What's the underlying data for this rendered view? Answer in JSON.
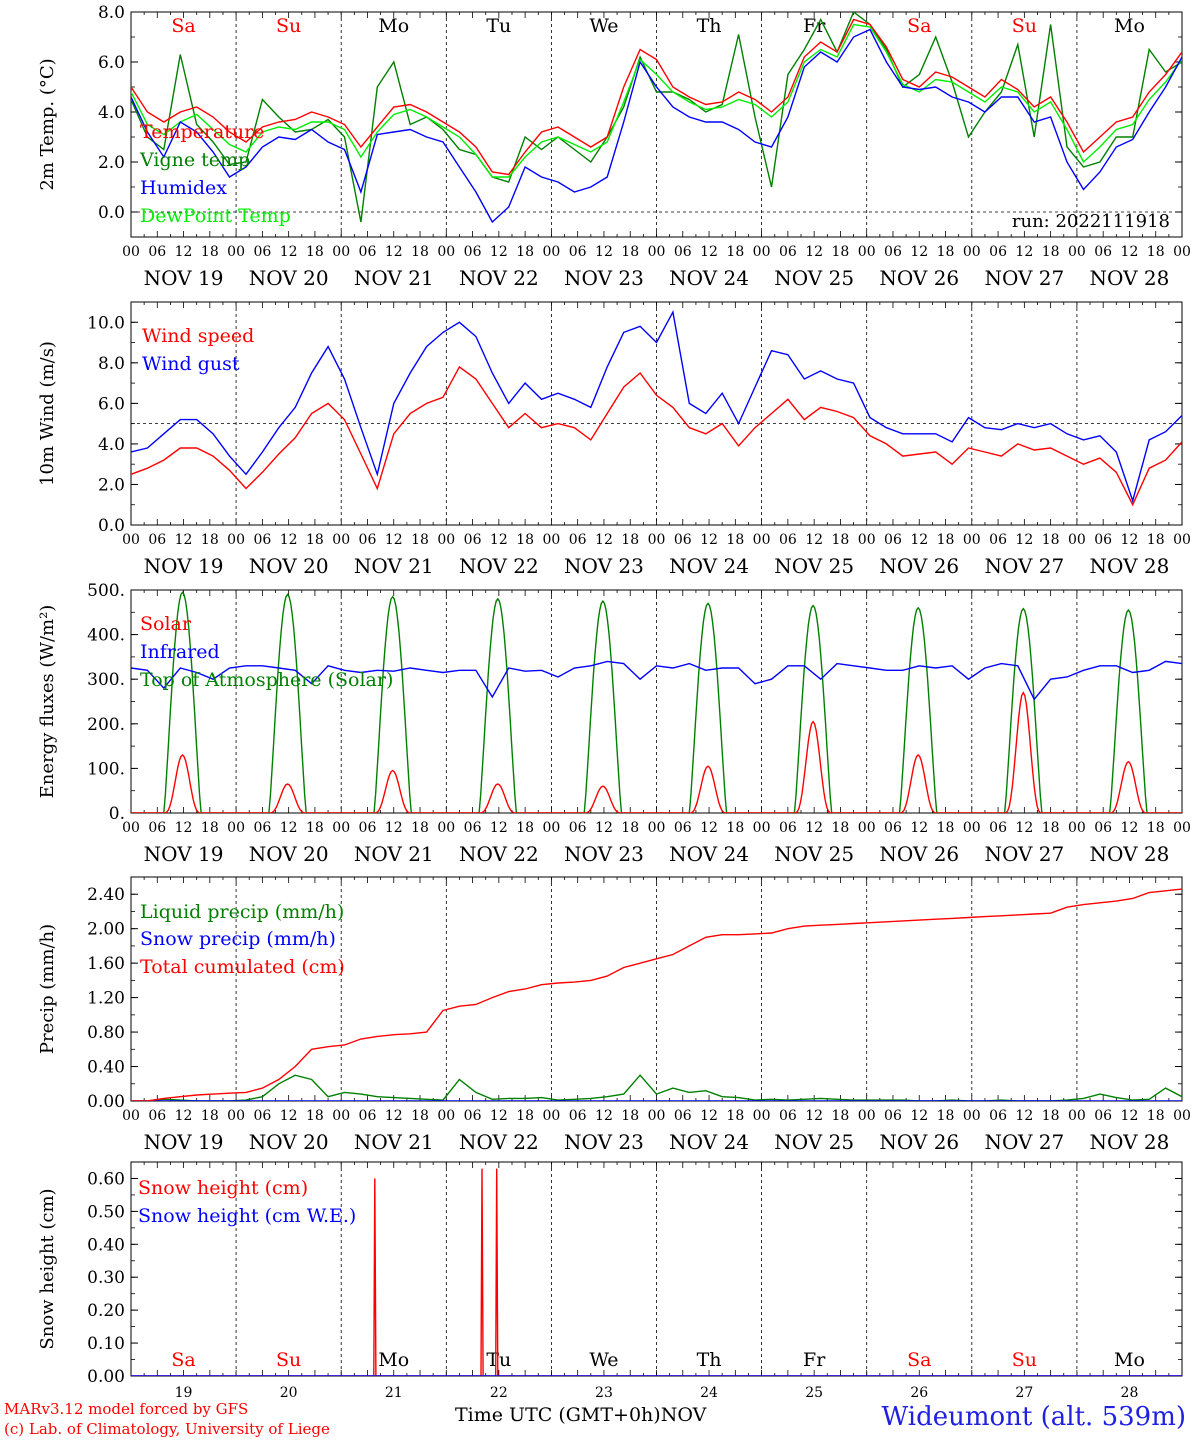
{
  "chart_data": [
    {
      "id": "temp",
      "type": "line",
      "ylabel": "2m Temp. (°C)",
      "ylim": [
        -1,
        8
      ],
      "yticks": [
        0,
        2,
        4,
        6,
        8
      ],
      "ytick_labels": [
        "0.0",
        "2.0",
        "4.0",
        "6.0",
        "8.0"
      ],
      "y_reference_line": 0,
      "top_day_labels": [
        "Sa",
        "Su",
        "Mo",
        "Tu",
        "We",
        "Th",
        "Fr",
        "Sa",
        "Su",
        "Mo"
      ],
      "annotation": "run: 2022111918",
      "x_hours_step": 6,
      "series": [
        {
          "name": "Temperature",
          "color": "#ff0000",
          "values": [
            5.0,
            4.0,
            3.6,
            4.0,
            4.2,
            3.8,
            3.2,
            2.8,
            3.4,
            3.6,
            3.7,
            4.0,
            3.8,
            3.5,
            2.6,
            3.4,
            4.2,
            4.3,
            4.0,
            3.6,
            3.2,
            2.6,
            1.6,
            1.5,
            2.4,
            3.2,
            3.4,
            3.0,
            2.6,
            3.0,
            5.0,
            6.5,
            6.1,
            5.0,
            4.6,
            4.3,
            4.4,
            4.8,
            4.5,
            4.0,
            4.6,
            6.2,
            6.8,
            6.4,
            7.7,
            7.5,
            6.6,
            5.3,
            5.0,
            5.6,
            5.4,
            5.0,
            4.6,
            5.3,
            4.9,
            4.2,
            4.6,
            3.6,
            2.4,
            3.0,
            3.6,
            3.8,
            4.8,
            5.5,
            6.4
          ]
        },
        {
          "name": "Vigne temp",
          "color": "#008000",
          "values": [
            4.5,
            3.0,
            2.5,
            6.3,
            3.5,
            2.8,
            1.9,
            2.0,
            4.5,
            3.8,
            3.2,
            3.3,
            3.7,
            3.0,
            -0.4,
            5.0,
            6.0,
            3.5,
            3.8,
            3.3,
            2.5,
            2.3,
            1.4,
            1.2,
            3.0,
            2.5,
            3.0,
            2.5,
            2.0,
            3.0,
            4.2,
            6.2,
            4.8,
            4.8,
            4.5,
            4.0,
            4.3,
            7.1,
            3.8,
            1.0,
            5.5,
            6.5,
            7.7,
            6.4,
            8.0,
            7.5,
            6.5,
            5.0,
            5.5,
            7.0,
            5.2,
            3.0,
            4.0,
            4.8,
            6.7,
            3.0,
            7.5,
            2.6,
            1.8,
            2.0,
            3.0,
            3.0,
            6.5,
            5.6,
            6.0
          ]
        },
        {
          "name": "Humidex",
          "color": "#0000ff",
          "values": [
            4.6,
            3.2,
            2.2,
            3.6,
            3.2,
            2.4,
            1.4,
            1.8,
            2.6,
            3.0,
            2.9,
            3.3,
            2.8,
            2.5,
            0.8,
            3.1,
            3.2,
            3.3,
            3.0,
            2.8,
            1.8,
            0.8,
            -0.4,
            0.2,
            1.8,
            1.4,
            1.2,
            0.8,
            1.0,
            1.4,
            3.6,
            6.0,
            5.0,
            4.2,
            3.8,
            3.6,
            3.6,
            3.3,
            2.8,
            2.6,
            3.8,
            5.8,
            6.4,
            6.0,
            7.0,
            7.3,
            6.0,
            5.0,
            4.9,
            5.0,
            4.6,
            4.4,
            4.0,
            4.6,
            4.6,
            3.6,
            3.8,
            2.0,
            0.9,
            1.6,
            2.6,
            2.9,
            4.0,
            5.0,
            6.2
          ]
        },
        {
          "name": "DewPoint Temp",
          "color": "#00ee00",
          "values": [
            4.8,
            3.5,
            3.1,
            3.6,
            3.9,
            3.3,
            2.7,
            2.4,
            3.2,
            3.4,
            3.3,
            3.6,
            3.6,
            3.3,
            2.2,
            3.2,
            3.9,
            4.1,
            3.8,
            3.4,
            3.0,
            2.3,
            1.4,
            1.4,
            2.2,
            2.8,
            3.0,
            2.7,
            2.4,
            2.8,
            4.4,
            6.1,
            5.5,
            4.8,
            4.4,
            4.1,
            4.2,
            4.5,
            4.3,
            3.8,
            4.4,
            6.0,
            6.5,
            6.2,
            7.5,
            7.4,
            6.4,
            5.1,
            4.8,
            5.3,
            5.2,
            4.8,
            4.4,
            5.0,
            4.8,
            4.0,
            4.4,
            3.3,
            2.0,
            2.6,
            3.3,
            3.5,
            4.5,
            5.2,
            6.1
          ]
        }
      ]
    },
    {
      "id": "wind",
      "type": "line",
      "ylabel": "10m Wind (m/s)",
      "ylim": [
        0,
        11
      ],
      "yticks": [
        0,
        2,
        4,
        6,
        8,
        10
      ],
      "ytick_labels": [
        "0.0",
        "2.0",
        "4.0",
        "6.0",
        "8.0",
        "10.0"
      ],
      "y_reference_line": 5,
      "x_hours_step": 6,
      "series": [
        {
          "name": "Wind speed",
          "color": "#ff0000",
          "values": [
            2.5,
            2.8,
            3.2,
            3.8,
            3.8,
            3.4,
            2.7,
            1.8,
            2.6,
            3.5,
            4.3,
            5.5,
            6.0,
            5.2,
            3.5,
            1.8,
            4.5,
            5.5,
            6.0,
            6.3,
            7.8,
            7.2,
            6.0,
            4.8,
            5.5,
            4.8,
            5.0,
            4.8,
            4.2,
            5.5,
            6.8,
            7.5,
            6.4,
            5.8,
            4.8,
            4.5,
            5.0,
            3.9,
            4.8,
            5.5,
            6.2,
            5.2,
            5.8,
            5.6,
            5.3,
            4.4,
            4.0,
            3.4,
            3.5,
            3.6,
            3.0,
            3.8,
            3.6,
            3.4,
            4.0,
            3.7,
            3.8,
            3.4,
            3.0,
            3.3,
            2.6,
            1.0,
            2.8,
            3.2,
            4.1
          ]
        },
        {
          "name": "Wind gust",
          "color": "#0000ff",
          "values": [
            3.6,
            3.8,
            4.5,
            5.2,
            5.2,
            4.5,
            3.4,
            2.5,
            3.6,
            4.8,
            5.8,
            7.5,
            8.8,
            7.2,
            4.8,
            2.5,
            6.0,
            7.5,
            8.8,
            9.5,
            10.0,
            9.3,
            7.5,
            6.0,
            7.0,
            6.2,
            6.5,
            6.2,
            5.8,
            7.8,
            9.5,
            9.8,
            9.0,
            10.5,
            6.0,
            5.5,
            6.5,
            5.0,
            6.8,
            8.6,
            8.4,
            7.2,
            7.6,
            7.2,
            7.0,
            5.3,
            4.8,
            4.5,
            4.5,
            4.5,
            4.1,
            5.3,
            4.8,
            4.7,
            5.0,
            4.8,
            5.0,
            4.5,
            4.2,
            4.4,
            3.6,
            1.2,
            4.2,
            4.6,
            5.4
          ]
        }
      ]
    },
    {
      "id": "energy",
      "type": "line",
      "ylabel": "Energy fluxes (W/m²)",
      "ylim": [
        0,
        500
      ],
      "yticks": [
        0,
        100,
        200,
        300,
        400,
        500
      ],
      "ytick_labels": [
        "0.",
        "100.",
        "200.",
        "300.",
        "400.",
        "500."
      ],
      "x_hours_step": 6,
      "days": 10,
      "daylight_start_hour": 7.5,
      "daylight_end_hour": 16.0,
      "series": [
        {
          "name": "Solar",
          "color": "#ff0000",
          "daily_peaks": [
            130,
            65,
            95,
            65,
            60,
            105,
            205,
            130,
            270,
            115
          ]
        },
        {
          "name": "Infrared",
          "color": "#0000ff",
          "values": [
            325,
            320,
            280,
            325,
            315,
            300,
            325,
            330,
            330,
            325,
            320,
            290,
            330,
            320,
            315,
            320,
            318,
            325,
            320,
            315,
            320,
            320,
            260,
            325,
            318,
            320,
            305,
            325,
            330,
            340,
            335,
            300,
            330,
            325,
            335,
            320,
            325,
            325,
            290,
            300,
            330,
            330,
            300,
            335,
            330,
            325,
            320,
            320,
            330,
            325,
            330,
            300,
            325,
            335,
            330,
            255,
            300,
            305,
            320,
            330,
            330,
            315,
            320,
            340,
            335
          ]
        },
        {
          "name": "Top of Atmosphere (Solar)",
          "color": "#008000",
          "daily_peaks": [
            495,
            490,
            485,
            480,
            475,
            470,
            465,
            460,
            458,
            455
          ]
        }
      ]
    },
    {
      "id": "precip",
      "type": "line",
      "ylabel": "Precip (mm/h)",
      "ylim": [
        0,
        2.6
      ],
      "yticks": [
        0,
        0.4,
        0.8,
        1.2,
        1.6,
        2.0,
        2.4
      ],
      "ytick_labels": [
        "0.00",
        "0.40",
        "0.80",
        "1.20",
        "1.60",
        "2.00",
        "2.40"
      ],
      "x_hours_step": 6,
      "series": [
        {
          "name": "Liquid precip (mm/h)",
          "color": "#008000",
          "values": [
            0,
            0,
            0.02,
            0.01,
            0,
            0,
            0,
            0.01,
            0.05,
            0.2,
            0.3,
            0.25,
            0.05,
            0.1,
            0.08,
            0.05,
            0.04,
            0.03,
            0.02,
            0.01,
            0.25,
            0.1,
            0.02,
            0.03,
            0.03,
            0.04,
            0.01,
            0.02,
            0.03,
            0.05,
            0.08,
            0.3,
            0.08,
            0.15,
            0.1,
            0.12,
            0.05,
            0.04,
            0.01,
            0.02,
            0.01,
            0.02,
            0.03,
            0.02,
            0.01,
            0.01,
            0.01,
            0.01,
            0,
            0,
            0.01,
            0,
            0,
            0.01,
            0,
            0,
            0,
            0.01,
            0.03,
            0.08,
            0.04,
            0.01,
            0.02,
            0.15,
            0.05
          ]
        },
        {
          "name": "Snow precip (mm/h)",
          "color": "#0000ff",
          "values": [
            0,
            0,
            0,
            0,
            0,
            0,
            0,
            0,
            0,
            0,
            0,
            0,
            0,
            0,
            0,
            0,
            0,
            0,
            0,
            0,
            0,
            0,
            0,
            0,
            0,
            0,
            0,
            0,
            0,
            0,
            0,
            0,
            0,
            0,
            0,
            0,
            0,
            0,
            0,
            0,
            0,
            0,
            0,
            0,
            0,
            0,
            0,
            0,
            0,
            0,
            0,
            0,
            0,
            0,
            0,
            0,
            0,
            0,
            0,
            0,
            0,
            0,
            0,
            0,
            0
          ]
        },
        {
          "name": "Total cumulated (cm)",
          "color": "#ff0000",
          "values": [
            0,
            0,
            0.03,
            0.05,
            0.07,
            0.08,
            0.09,
            0.1,
            0.15,
            0.25,
            0.4,
            0.6,
            0.63,
            0.65,
            0.72,
            0.75,
            0.77,
            0.78,
            0.8,
            1.05,
            1.1,
            1.12,
            1.2,
            1.27,
            1.3,
            1.35,
            1.37,
            1.38,
            1.4,
            1.45,
            1.55,
            1.6,
            1.65,
            1.7,
            1.8,
            1.9,
            1.93,
            1.93,
            1.94,
            1.95,
            2.0,
            2.03,
            2.04,
            2.05,
            2.06,
            2.07,
            2.08,
            2.09,
            2.1,
            2.11,
            2.12,
            2.13,
            2.14,
            2.15,
            2.16,
            2.17,
            2.18,
            2.25,
            2.28,
            2.3,
            2.32,
            2.35,
            2.42,
            2.44,
            2.46
          ]
        }
      ]
    },
    {
      "id": "snow",
      "type": "line",
      "ylabel": "Snow height (cm)",
      "ylim": [
        0,
        0.65
      ],
      "yticks": [
        0,
        0.1,
        0.2,
        0.3,
        0.4,
        0.5,
        0.6
      ],
      "ytick_labels": [
        "0.00",
        "0.10",
        "0.20",
        "0.30",
        "0.40",
        "0.50",
        "0.60"
      ],
      "bottom_day_labels": [
        "Sa",
        "Su",
        "Mo",
        "Tu",
        "We",
        "Th",
        "Fr",
        "Sa",
        "Su",
        "Mo"
      ],
      "date_labels": [
        "19",
        "20",
        "21",
        "22",
        "23",
        "24",
        "25",
        "26",
        "27",
        "28"
      ],
      "xlabel": "Time UTC (GMT+0h)",
      "month_label": "NOV",
      "series": [
        {
          "name": "Snow height (cm)",
          "color": "#ff0000",
          "spikes": [
            {
              "day": 2.32,
              "value": 0.6
            },
            {
              "day": 3.34,
              "value": 0.63
            },
            {
              "day": 3.48,
              "value": 0.63
            }
          ]
        },
        {
          "name": "Snow height (cm W.E.)",
          "color": "#0000ff",
          "spikes": []
        }
      ]
    }
  ],
  "axis": {
    "hour_labels": [
      "00",
      "06",
      "12",
      "18"
    ],
    "day_dates": [
      "NOV 19",
      "NOV 20",
      "NOV 21",
      "NOV 22",
      "NOV 23",
      "NOV 24",
      "NOV 25",
      "NOV 26",
      "NOV 27",
      "NOV 28"
    ]
  },
  "footer": {
    "model_line": "MARv3.12 model forced by GFS",
    "credit_line": "(c) Lab. of Climatology, University of Liege",
    "station": "Wideumont (alt. 539m)"
  }
}
